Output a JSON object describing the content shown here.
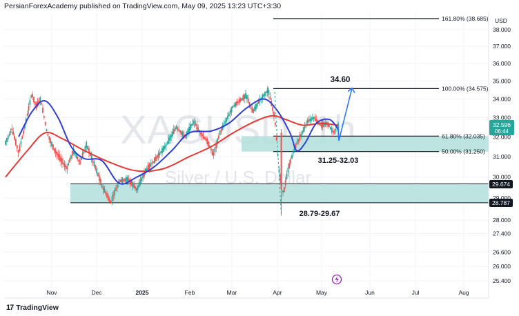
{
  "header": {
    "publisher_text": "PersianForexAcademy published on TradingView.com, May 09, 2025 13:23 UTC+3:30"
  },
  "watermark": {
    "symbol": "XAGUSD, 1h",
    "subtitle": "Silver / U.S. Dollar"
  },
  "footer": {
    "brand": "TradingView",
    "logo": "17"
  },
  "price_scale": {
    "currency": "USD",
    "ticks": [
      "38.000",
      "37.000",
      "36.000",
      "35.000",
      "34.000",
      "33.000",
      "32.000",
      "31.000",
      "30.000",
      "29.000",
      "28.000",
      "27.400",
      "26.600",
      "26.000",
      "25.400"
    ],
    "tick_values": [
      38.0,
      37.0,
      36.0,
      35.0,
      34.0,
      33.0,
      32.0,
      31.0,
      30.0,
      29.0,
      28.0,
      27.4,
      26.6,
      26.0,
      25.4
    ],
    "current_price": "32.596",
    "countdown": "06:44",
    "badge_upper": "29.674",
    "badge_lower": "28.787"
  },
  "time_scale": {
    "labels": [
      "Nov",
      "Dec",
      "2025",
      "Feb",
      "Mar",
      "Apr",
      "May",
      "Jun",
      "Jul",
      "Aug"
    ]
  },
  "annotations": {
    "fib_levels": [
      {
        "label": "161.80% (38.685)",
        "value": 38.685
      },
      {
        "label": "100.00% (34.575)",
        "value": 34.575
      },
      {
        "label": "61.80% (32.035)",
        "value": 32.035
      },
      {
        "label": "50.00% (31.250)",
        "value": 31.25
      }
    ],
    "target_label": "34.60",
    "upper_zone_label": "31.25-32.03",
    "lower_zone_label": "28.79-29.67"
  },
  "colors": {
    "zone_fill": "#b2dfdb",
    "red_ma": "#e53935",
    "blue_ma": "#2f3fd6",
    "projection": "#2979ff",
    "candle_up": "#26a69a",
    "candle_down": "#ef5350",
    "price_badge": "#26a69a",
    "dark_badge": "#131722"
  },
  "chart_data": {
    "type": "candlestick",
    "symbol": "XAGUSD",
    "timeframe": "1h",
    "y_range": [
      25.2,
      38.5
    ],
    "y_scale": "log",
    "x_labels": [
      "Nov",
      "Dec",
      "2025",
      "Feb",
      "Mar",
      "Apr",
      "May",
      "Jun",
      "Jul",
      "Aug"
    ],
    "price_path": [
      [
        0.0,
        31.7
      ],
      [
        1.5,
        32.4
      ],
      [
        3.0,
        31.2
      ],
      [
        4.5,
        32.6
      ],
      [
        6.0,
        34.3
      ],
      [
        7.0,
        33.6
      ],
      [
        8.0,
        34.0
      ],
      [
        9.5,
        32.2
      ],
      [
        11.0,
        31.4
      ],
      [
        12.5,
        30.9
      ],
      [
        14.0,
        30.4
      ],
      [
        15.5,
        31.3
      ],
      [
        17.0,
        30.7
      ],
      [
        18.5,
        31.6
      ],
      [
        20.5,
        30.5
      ],
      [
        22.0,
        29.6
      ],
      [
        24.0,
        28.8
      ],
      [
        26.0,
        29.8
      ],
      [
        28.0,
        29.9
      ],
      [
        30.0,
        29.4
      ],
      [
        32.0,
        30.3
      ],
      [
        34.0,
        30.8
      ],
      [
        36.5,
        31.5
      ],
      [
        39.0,
        32.5
      ],
      [
        41.0,
        32.0
      ],
      [
        43.0,
        32.8
      ],
      [
        44.5,
        32.2
      ],
      [
        46.0,
        31.8
      ],
      [
        47.5,
        31.1
      ],
      [
        49.0,
        32.2
      ],
      [
        50.5,
        32.9
      ],
      [
        52.0,
        33.6
      ],
      [
        53.5,
        33.9
      ],
      [
        55.0,
        34.2
      ],
      [
        56.5,
        33.3
      ],
      [
        58.0,
        33.9
      ],
      [
        60.0,
        34.5
      ],
      [
        61.5,
        33.0
      ],
      [
        62.5,
        30.3
      ],
      [
        63.5,
        29.2
      ],
      [
        64.5,
        30.3
      ],
      [
        66.0,
        31.4
      ],
      [
        67.5,
        32.1
      ],
      [
        69.0,
        32.8
      ],
      [
        70.5,
        33.0
      ],
      [
        72.0,
        32.6
      ],
      [
        73.5,
        32.7
      ],
      [
        75.0,
        32.2
      ],
      [
        76.0,
        32.596
      ]
    ],
    "spike_low": 28.2,
    "spike_index": 63.0,
    "red_ma": [
      [
        0.0,
        30.0
      ],
      [
        5.0,
        31.3
      ],
      [
        9.0,
        32.2
      ],
      [
        13.0,
        31.9
      ],
      [
        18.0,
        31.3
      ],
      [
        24.0,
        30.7
      ],
      [
        30.0,
        30.3
      ],
      [
        36.0,
        30.4
      ],
      [
        42.0,
        31.0
      ],
      [
        47.0,
        31.5
      ],
      [
        52.0,
        32.2
      ],
      [
        57.0,
        32.8
      ],
      [
        61.0,
        33.1
      ],
      [
        64.0,
        32.9
      ],
      [
        68.0,
        32.6
      ],
      [
        72.0,
        32.7
      ],
      [
        76.0,
        32.6
      ]
    ],
    "blue_ma": [
      [
        3.0,
        32.0
      ],
      [
        6.0,
        33.3
      ],
      [
        9.0,
        33.9
      ],
      [
        12.0,
        33.0
      ],
      [
        15.0,
        31.5
      ],
      [
        18.0,
        30.9
      ],
      [
        22.0,
        30.8
      ],
      [
        26.0,
        29.7
      ],
      [
        30.0,
        30.0
      ],
      [
        34.0,
        30.5
      ],
      [
        38.0,
        31.3
      ],
      [
        42.0,
        32.2
      ],
      [
        47.0,
        32.3
      ],
      [
        51.0,
        32.7
      ],
      [
        55.0,
        33.5
      ],
      [
        59.0,
        34.0
      ],
      [
        62.0,
        33.4
      ],
      [
        65.0,
        32.2
      ],
      [
        66.5,
        31.3
      ],
      [
        68.5,
        31.7
      ],
      [
        71.0,
        32.7
      ],
      [
        74.0,
        32.9
      ],
      [
        76.0,
        32.4
      ]
    ],
    "projection_path": [
      [
        76.0,
        32.5
      ],
      [
        77.5,
        31.8
      ],
      [
        80.0,
        34.6
      ]
    ]
  }
}
